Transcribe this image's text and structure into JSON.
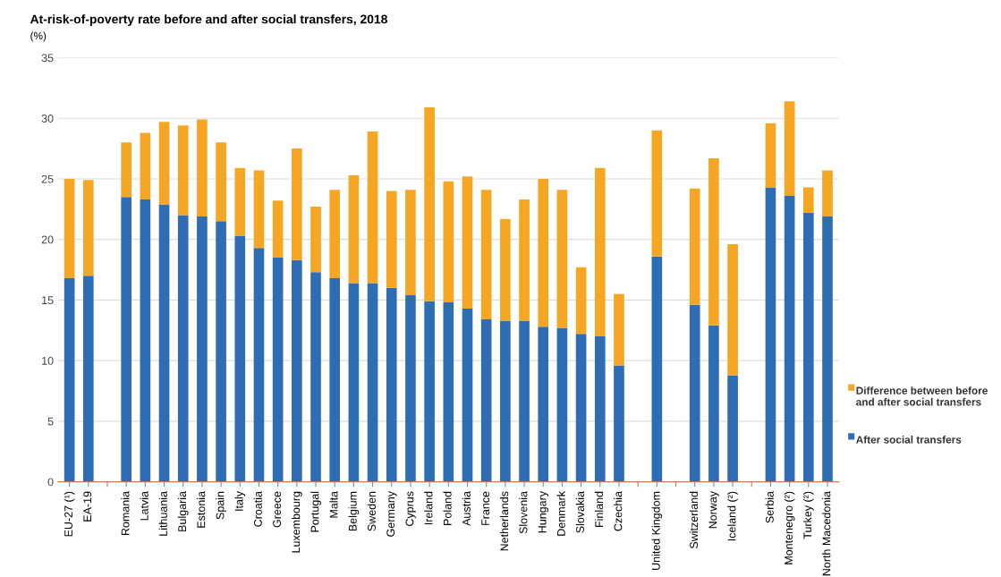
{
  "chart_data": {
    "type": "bar",
    "stacked": true,
    "title": "At-risk-of-poverty rate before and after social transfers, 2018",
    "ylabel": "(%)",
    "categories": [
      "EU-27 (¹)",
      "EA-19",
      null,
      "Romania",
      "Latvia",
      "Lithuania",
      "Bulgaria",
      "Estonia",
      "Spain",
      "Italy",
      "Croatia",
      "Greece",
      "Luxembourg",
      "Portugal",
      "Malta",
      "Belgium",
      "Sweden",
      "Germany",
      "Cyprus",
      "Ireland",
      "Poland",
      "Austria",
      "France",
      "Netherlands",
      "Slovenia",
      "Hungary",
      "Denmark",
      "Slovakia",
      "Finland",
      "Czechia",
      null,
      "United Kingdom",
      null,
      "Switzerland",
      "Norway",
      "Iceland (²)",
      null,
      "Serbia",
      "Montenegro (²)",
      "Turkey (²)",
      "North Macedonia"
    ],
    "series": [
      {
        "name": "After social transfers",
        "color": "#2e6db4",
        "values": [
          16.8,
          17.0,
          null,
          23.5,
          23.3,
          22.9,
          22.0,
          21.9,
          21.5,
          20.3,
          19.3,
          18.5,
          18.3,
          17.3,
          16.8,
          16.4,
          16.4,
          16.0,
          15.4,
          14.9,
          14.8,
          14.3,
          13.4,
          13.3,
          13.3,
          12.8,
          12.7,
          12.2,
          12.0,
          9.6,
          null,
          18.6,
          null,
          14.6,
          12.9,
          8.8,
          null,
          24.3,
          23.6,
          22.2,
          21.9
        ]
      },
      {
        "name": "Difference between before and after social transfers",
        "color": "#f5a623",
        "values": [
          8.2,
          7.9,
          null,
          4.5,
          5.5,
          6.8,
          7.4,
          8.0,
          6.5,
          5.6,
          6.4,
          4.7,
          9.2,
          5.4,
          7.3,
          8.9,
          12.5,
          8.0,
          8.7,
          16.0,
          10.0,
          10.9,
          10.7,
          8.4,
          10.0,
          12.2,
          11.4,
          5.5,
          13.9,
          5.9,
          null,
          10.4,
          null,
          9.6,
          13.8,
          10.8,
          null,
          5.3,
          7.8,
          2.1,
          3.8
        ]
      }
    ],
    "ylim": [
      0,
      35
    ],
    "yticks": [
      0,
      5,
      10,
      15,
      20,
      25,
      30,
      35
    ],
    "grid": "y",
    "legend": "right"
  }
}
